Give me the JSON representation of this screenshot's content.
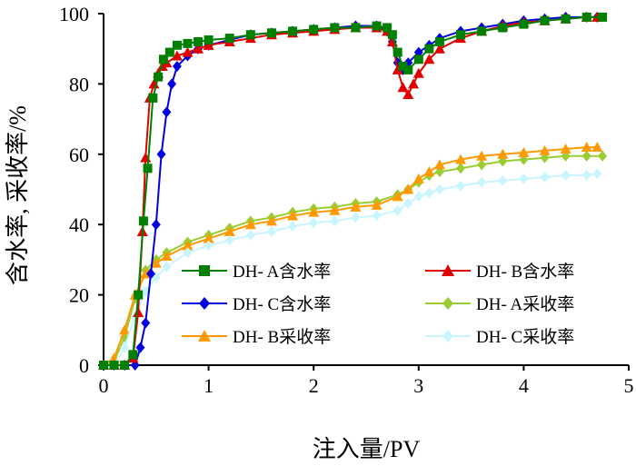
{
  "chart_data": {
    "type": "scatter-line",
    "xlabel": "注入量/PV",
    "ylabel": "含水率, 采收率/%",
    "xlim": [
      0,
      5
    ],
    "ylim": [
      0,
      100
    ],
    "xticks": [
      0,
      1,
      2,
      3,
      4,
      5
    ],
    "yticks": [
      0,
      20,
      40,
      60,
      80,
      100
    ],
    "legend_position": "lower-right",
    "series": [
      {
        "name": "DH- A含水率",
        "color": "#008000",
        "marker": "square",
        "x": [
          0.0,
          0.1,
          0.2,
          0.28,
          0.33,
          0.38,
          0.42,
          0.47,
          0.52,
          0.57,
          0.63,
          0.7,
          0.8,
          0.9,
          1.0,
          1.2,
          1.4,
          1.6,
          1.8,
          2.0,
          2.2,
          2.4,
          2.6,
          2.7,
          2.75,
          2.8,
          2.85,
          2.9,
          3.0,
          3.1,
          3.2,
          3.4,
          3.6,
          3.8,
          4.0,
          4.2,
          4.4,
          4.6,
          4.75
        ],
        "y": [
          0,
          0,
          0,
          3,
          20,
          41,
          56,
          76,
          82,
          87,
          89,
          91,
          91.5,
          92,
          92.5,
          93,
          94,
          94.5,
          95,
          95.5,
          96,
          96,
          96.5,
          96,
          94,
          89,
          85,
          84,
          87,
          90,
          92,
          94,
          95,
          96,
          97,
          98,
          98.5,
          99,
          99
        ]
      },
      {
        "name": "DH- B含水率",
        "color": "#e00000",
        "marker": "triangle",
        "x": [
          0.0,
          0.1,
          0.2,
          0.28,
          0.33,
          0.37,
          0.4,
          0.44,
          0.48,
          0.52,
          0.56,
          0.6,
          0.7,
          0.8,
          0.9,
          1.0,
          1.2,
          1.4,
          1.6,
          1.8,
          2.0,
          2.2,
          2.4,
          2.6,
          2.7,
          2.75,
          2.8,
          2.85,
          2.9,
          2.95,
          3.0,
          3.1,
          3.2,
          3.4,
          3.6,
          3.8,
          4.0,
          4.2,
          4.4,
          4.6,
          4.7
        ],
        "y": [
          0,
          0,
          0,
          2,
          15,
          38,
          59,
          76,
          80,
          83,
          85,
          86,
          88,
          89,
          90,
          91,
          92,
          93,
          94,
          94.5,
          95,
          95.5,
          96,
          96,
          95,
          92,
          84,
          79,
          77,
          80,
          83,
          87,
          90,
          93,
          95,
          96.5,
          97.5,
          98,
          98.5,
          99,
          99
        ]
      },
      {
        "name": "DH- C含水率",
        "color": "#0000e0",
        "marker": "diamond",
        "x": [
          0.0,
          0.1,
          0.2,
          0.3,
          0.35,
          0.4,
          0.45,
          0.5,
          0.55,
          0.6,
          0.65,
          0.7,
          0.8,
          0.9,
          1.0,
          1.2,
          1.4,
          1.6,
          1.8,
          2.0,
          2.2,
          2.4,
          2.6,
          2.7,
          2.75,
          2.8,
          2.85,
          2.9,
          3.0,
          3.1,
          3.2,
          3.4,
          3.6,
          3.8,
          4.0,
          4.2,
          4.4,
          4.6,
          4.7
        ],
        "y": [
          0,
          0,
          0,
          0,
          5,
          12,
          26,
          40,
          60,
          72,
          80,
          85,
          88,
          90,
          91,
          92.5,
          94,
          94.5,
          95,
          95.5,
          96,
          96.5,
          96.5,
          95,
          92,
          86,
          84,
          86,
          89,
          91,
          93,
          95,
          96,
          97,
          98,
          98.5,
          99,
          99,
          99
        ]
      },
      {
        "name": "DH- A采收率",
        "color": "#9acd32",
        "marker": "diamond",
        "x": [
          0.0,
          0.1,
          0.2,
          0.3,
          0.4,
          0.5,
          0.6,
          0.8,
          1.0,
          1.2,
          1.4,
          1.6,
          1.8,
          2.0,
          2.2,
          2.4,
          2.6,
          2.8,
          2.9,
          3.0,
          3.1,
          3.2,
          3.4,
          3.6,
          3.8,
          4.0,
          4.2,
          4.4,
          4.6,
          4.75
        ],
        "y": [
          0,
          1,
          8,
          19,
          27,
          30,
          32,
          35,
          37,
          39,
          41,
          42,
          43.5,
          44.5,
          45,
          46,
          46.5,
          48.5,
          50,
          52,
          54,
          55,
          56,
          57,
          58,
          58.5,
          59,
          59.5,
          59.5,
          59.5
        ]
      },
      {
        "name": "DH- B采收率",
        "color": "#ff9900",
        "marker": "triangle",
        "x": [
          0.0,
          0.1,
          0.2,
          0.3,
          0.4,
          0.5,
          0.6,
          0.8,
          1.0,
          1.2,
          1.4,
          1.6,
          1.8,
          2.0,
          2.2,
          2.4,
          2.6,
          2.8,
          2.9,
          3.0,
          3.1,
          3.2,
          3.4,
          3.6,
          3.8,
          4.0,
          4.2,
          4.4,
          4.6,
          4.7
        ],
        "y": [
          0,
          2,
          10,
          20,
          26,
          29,
          31,
          34,
          36,
          38,
          40,
          41,
          42.5,
          43.5,
          44,
          45,
          45.5,
          48,
          50,
          53,
          55,
          57,
          58.5,
          59.5,
          60,
          60.5,
          61,
          61.5,
          62,
          62
        ]
      },
      {
        "name": "DH- C采收率",
        "color": "#c8f5ff",
        "marker": "diamond",
        "x": [
          0.0,
          0.1,
          0.2,
          0.3,
          0.4,
          0.5,
          0.6,
          0.8,
          1.0,
          1.2,
          1.4,
          1.6,
          1.8,
          2.0,
          2.2,
          2.4,
          2.6,
          2.8,
          2.9,
          3.0,
          3.1,
          3.2,
          3.4,
          3.6,
          3.8,
          4.0,
          4.2,
          4.4,
          4.6,
          4.7
        ],
        "y": [
          0,
          0,
          5,
          14,
          21,
          25,
          28,
          32,
          34,
          35.5,
          37,
          38,
          39.5,
          40.5,
          41,
          42,
          42.5,
          44,
          46,
          48,
          49,
          50,
          51,
          52,
          52.5,
          53,
          53.5,
          54,
          54,
          54.5
        ]
      }
    ]
  }
}
